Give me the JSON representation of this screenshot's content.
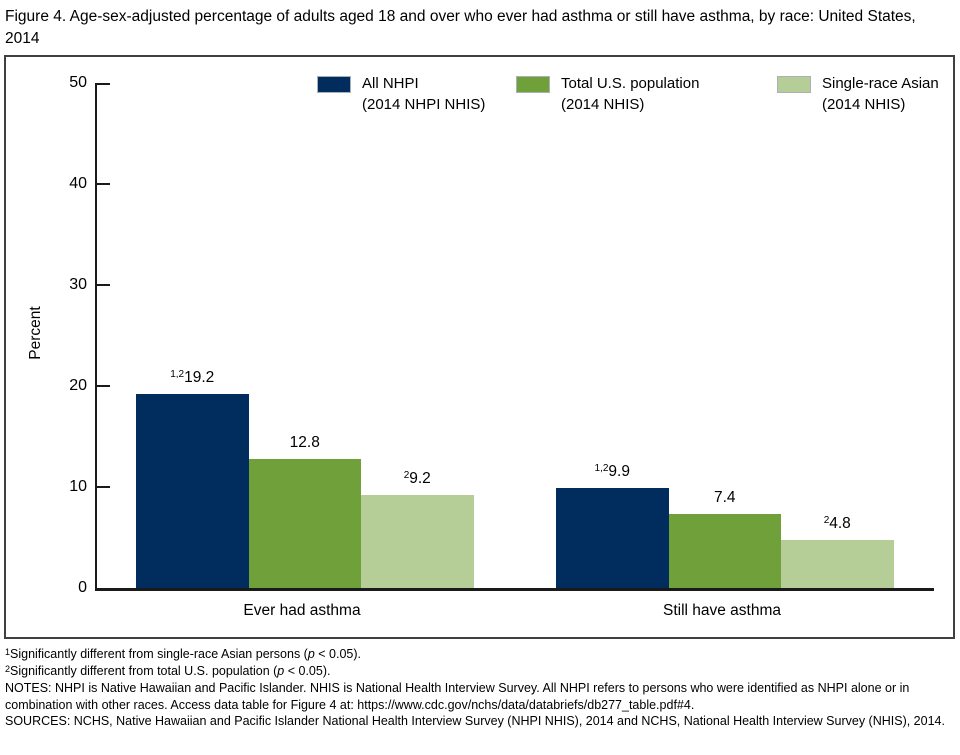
{
  "figure": {
    "title": "Figure 4. Age-sex-adjusted percentage of adults aged 18 and over who ever had asthma or still have asthma, by race: United States, 2014"
  },
  "chart_data": {
    "type": "bar",
    "categories": [
      "Ever had asthma",
      "Still have asthma"
    ],
    "series": [
      {
        "name": "All NHPI (2014 NHPI NHIS)",
        "legend_line1": "All NHPI",
        "legend_line2": "(2014 NHPI NHIS)",
        "color": "#002d5e",
        "values": [
          19.2,
          9.9
        ],
        "value_sups": [
          "1,2",
          "1,2"
        ]
      },
      {
        "name": "Total U.S. population (2014 NHIS)",
        "legend_line1": "Total U.S. population",
        "legend_line2": "(2014 NHIS)",
        "color": "#6fa03a",
        "values": [
          12.8,
          7.4
        ],
        "value_sups": [
          "",
          ""
        ]
      },
      {
        "name": "Single-race Asian (2014 NHIS)",
        "legend_line1": "Single-race Asian",
        "legend_line2": "(2014 NHIS)",
        "color": "#b5cd96",
        "values": [
          9.2,
          4.8
        ],
        "value_sups": [
          "2",
          "2"
        ]
      }
    ],
    "ylabel": "Percent",
    "xlabel": "",
    "ylim": [
      0,
      50
    ],
    "yticks": [
      0,
      10,
      20,
      30,
      40,
      50
    ],
    "grid": false,
    "legend_position": "top-center"
  },
  "footnotes": [
    {
      "sup": "1",
      "pre": "Significantly different from single-race Asian persons (",
      "italic": "p",
      "post": " < 0.05)."
    },
    {
      "sup": "2",
      "pre": "Significantly different from total U.S. population (",
      "italic": "p",
      "post": " < 0.05)."
    }
  ],
  "notes": "NOTES: NHPI is Native Hawaiian and Pacific Islander. NHIS is National Health Interview Survey. All NHPI refers to persons who were identified as NHPI alone or in combination with other races. Access data table for Figure 4 at: https://www.cdc.gov/nchs/data/databriefs/db277_table.pdf#4.",
  "sources": "SOURCES: NCHS, Native Hawaiian and Pacific Islander National Health Interview Survey (NHPI NHIS), 2014 and NCHS, National Health Interview Survey (NHIS), 2014."
}
